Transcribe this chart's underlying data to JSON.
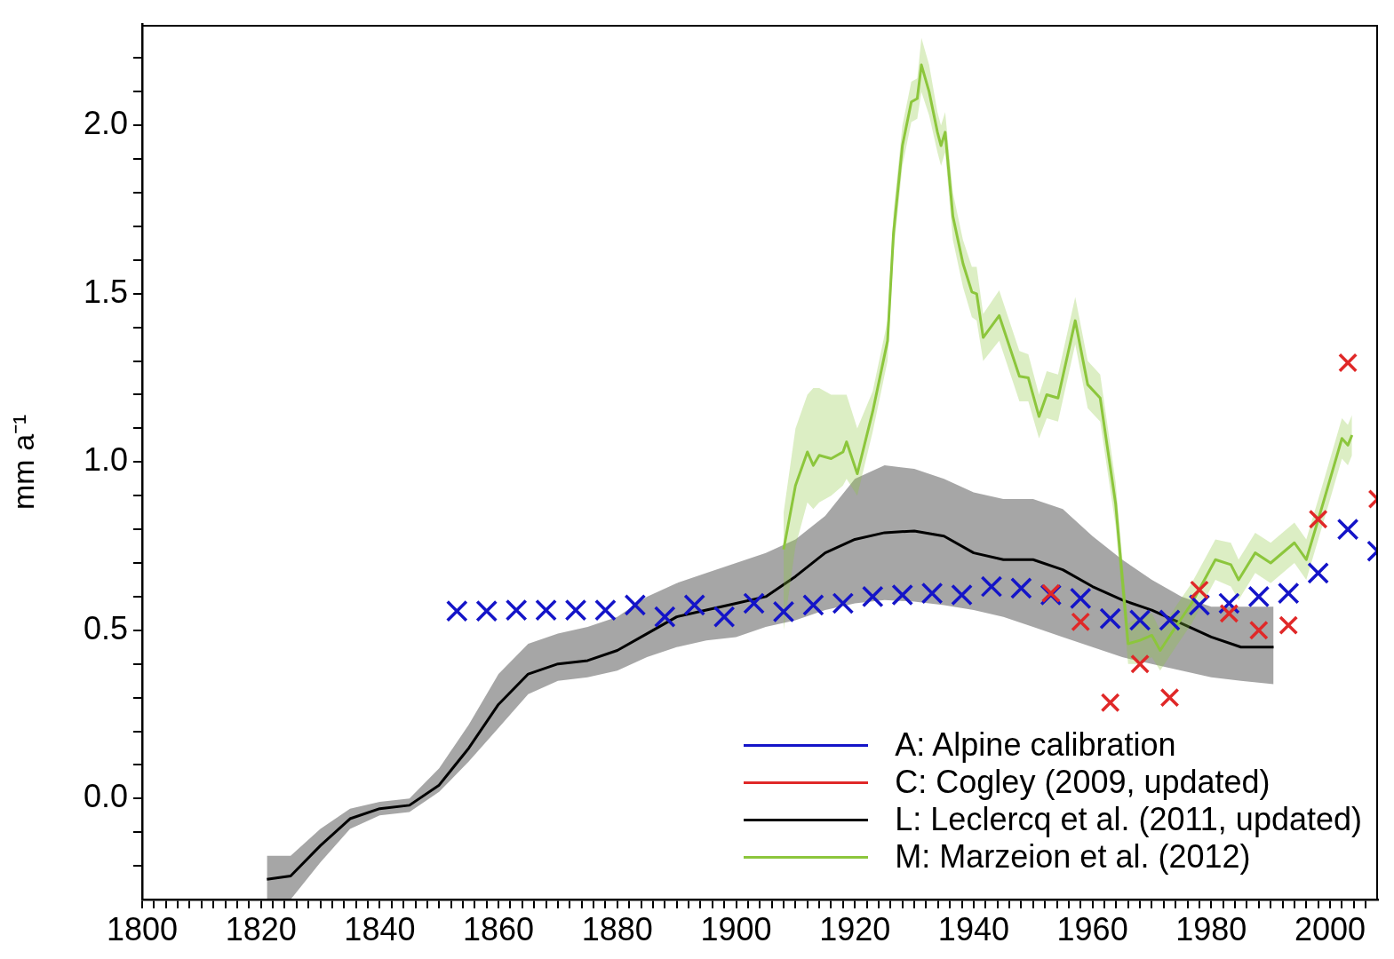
{
  "chart_data": {
    "type": "line",
    "ylabel": "mm a⁻¹",
    "xlim": [
      1800,
      2008
    ],
    "ylim": [
      -0.3,
      2.3
    ],
    "xticks": [
      1800,
      {
        "value": 1802,
        "label": null
      },
      {
        "value": 1804,
        "label": null
      },
      {
        "value": 1806,
        "label": null
      },
      {
        "value": 1808,
        "label": null
      },
      {
        "value": 1810,
        "label": null
      },
      {
        "value": 1812,
        "label": null
      },
      {
        "value": 1814,
        "label": null
      },
      {
        "value": 1816,
        "label": null
      },
      {
        "value": 1818,
        "label": null
      },
      1820,
      {
        "value": 1822,
        "label": null
      },
      {
        "value": 1824,
        "label": null
      },
      {
        "value": 1826,
        "label": null
      },
      {
        "value": 1828,
        "label": null
      },
      {
        "value": 1830,
        "label": null
      },
      {
        "value": 1832,
        "label": null
      },
      {
        "value": 1834,
        "label": null
      },
      {
        "value": 1836,
        "label": null
      },
      {
        "value": 1838,
        "label": null
      },
      1840,
      {
        "value": 1842,
        "label": null
      },
      {
        "value": 1844,
        "label": null
      },
      {
        "value": 1846,
        "label": null
      },
      {
        "value": 1848,
        "label": null
      },
      {
        "value": 1850,
        "label": null
      },
      {
        "value": 1852,
        "label": null
      },
      {
        "value": 1854,
        "label": null
      },
      {
        "value": 1856,
        "label": null
      },
      {
        "value": 1858,
        "label": null
      },
      1860,
      {
        "value": 1862,
        "label": null
      },
      {
        "value": 1864,
        "label": null
      },
      {
        "value": 1866,
        "label": null
      },
      {
        "value": 1868,
        "label": null
      },
      {
        "value": 1870,
        "label": null
      },
      {
        "value": 1872,
        "label": null
      },
      {
        "value": 1874,
        "label": null
      },
      {
        "value": 1876,
        "label": null
      },
      {
        "value": 1878,
        "label": null
      },
      1880,
      {
        "value": 1882,
        "label": null
      },
      {
        "value": 1884,
        "label": null
      },
      {
        "value": 1886,
        "label": null
      },
      {
        "value": 1888,
        "label": null
      },
      {
        "value": 1890,
        "label": null
      },
      {
        "value": 1892,
        "label": null
      },
      {
        "value": 1894,
        "label": null
      },
      {
        "value": 1896,
        "label": null
      },
      {
        "value": 1898,
        "label": null
      },
      1900,
      {
        "value": 1902,
        "label": null
      },
      {
        "value": 1904,
        "label": null
      },
      {
        "value": 1906,
        "label": null
      },
      {
        "value": 1908,
        "label": null
      },
      {
        "value": 1910,
        "label": null
      },
      {
        "value": 1912,
        "label": null
      },
      {
        "value": 1914,
        "label": null
      },
      {
        "value": 1916,
        "label": null
      },
      {
        "value": 1918,
        "label": null
      },
      1920,
      {
        "value": 1922,
        "label": null
      },
      {
        "value": 1924,
        "label": null
      },
      {
        "value": 1926,
        "label": null
      },
      {
        "value": 1928,
        "label": null
      },
      {
        "value": 1930,
        "label": null
      },
      {
        "value": 1932,
        "label": null
      },
      {
        "value": 1934,
        "label": null
      },
      {
        "value": 1936,
        "label": null
      },
      {
        "value": 1938,
        "label": null
      },
      1940,
      {
        "value": 1942,
        "label": null
      },
      {
        "value": 1944,
        "label": null
      },
      {
        "value": 1946,
        "label": null
      },
      {
        "value": 1948,
        "label": null
      },
      {
        "value": 1950,
        "label": null
      },
      {
        "value": 1952,
        "label": null
      },
      {
        "value": 1954,
        "label": null
      },
      {
        "value": 1956,
        "label": null
      },
      {
        "value": 1958,
        "label": null
      },
      1960,
      {
        "value": 1962,
        "label": null
      },
      {
        "value": 1964,
        "label": null
      },
      {
        "value": 1966,
        "label": null
      },
      {
        "value": 1968,
        "label": null
      },
      {
        "value": 1970,
        "label": null
      },
      {
        "value": 1972,
        "label": null
      },
      {
        "value": 1974,
        "label": null
      },
      {
        "value": 1976,
        "label": null
      },
      {
        "value": 1978,
        "label": null
      },
      1980,
      {
        "value": 1982,
        "label": null
      },
      {
        "value": 1984,
        "label": null
      },
      {
        "value": 1986,
        "label": null
      },
      {
        "value": 1988,
        "label": null
      },
      {
        "value": 1990,
        "label": null
      },
      {
        "value": 1992,
        "label": null
      },
      {
        "value": 1994,
        "label": null
      },
      {
        "value": 1996,
        "label": null
      },
      {
        "value": 1998,
        "label": null
      },
      2000,
      {
        "value": 2002,
        "label": null
      },
      {
        "value": 2004,
        "label": null
      },
      {
        "value": 2006,
        "label": null
      }
    ],
    "yticks": [
      {
        "value": -0.2,
        "label": null
      },
      {
        "value": -0.1,
        "label": null
      },
      {
        "value": 0,
        "label": "0.0"
      },
      {
        "value": 0.1,
        "label": null
      },
      {
        "value": 0.2,
        "label": null
      },
      {
        "value": 0.3,
        "label": null
      },
      {
        "value": 0.4,
        "label": null
      },
      {
        "value": 0.5,
        "label": "0.5"
      },
      {
        "value": 0.6,
        "label": null
      },
      {
        "value": 0.7,
        "label": null
      },
      {
        "value": 0.8,
        "label": null
      },
      {
        "value": 0.9,
        "label": null
      },
      {
        "value": 1,
        "label": "1.0"
      },
      {
        "value": 1.1,
        "label": null
      },
      {
        "value": 1.2,
        "label": null
      },
      {
        "value": 1.3,
        "label": null
      },
      {
        "value": 1.4,
        "label": null
      },
      {
        "value": 1.5,
        "label": "1.5"
      },
      {
        "value": 1.6,
        "label": null
      },
      {
        "value": 1.7,
        "label": null
      },
      {
        "value": 1.8,
        "label": null
      },
      {
        "value": 1.9,
        "label": null
      },
      {
        "value": 2,
        "label": "2.0"
      },
      {
        "value": 2.1,
        "label": null
      },
      {
        "value": 2.2,
        "label": null
      }
    ],
    "grid": false,
    "legend": "bottom right",
    "series": [
      {
        "name": "A: Alpine calibration",
        "type": "scatter",
        "marker": "cross",
        "color": "#1414c8",
        "x": [
          1853,
          1858,
          1863,
          1868,
          1873,
          1878,
          1883,
          1888,
          1893,
          1898,
          1903,
          1908,
          1913,
          1918,
          1923,
          1928,
          1933,
          1938,
          1943,
          1948,
          1953,
          1958,
          1963,
          1968,
          1973,
          1978,
          1983,
          1988,
          1993,
          1998,
          2003,
          2008
        ],
        "values": [
          0.557,
          0.557,
          0.56,
          0.56,
          0.56,
          0.56,
          0.575,
          0.54,
          0.575,
          0.54,
          0.58,
          0.555,
          0.575,
          0.58,
          0.6,
          0.605,
          0.61,
          0.605,
          0.63,
          0.625,
          0.605,
          0.595,
          0.535,
          0.53,
          0.53,
          0.575,
          0.58,
          0.6,
          0.61,
          0.67,
          0.8,
          0.735
        ]
      },
      {
        "name": "C: Cogley (2009, updated)",
        "type": "scatter",
        "marker": "cross",
        "color": "#e02828",
        "x": [
          1953,
          1958,
          1963,
          1968,
          1973,
          1978,
          1983,
          1988,
          1993,
          1998,
          2003,
          2008
        ],
        "values": [
          0.61,
          0.525,
          0.285,
          0.4,
          0.3,
          0.62,
          0.55,
          0.5,
          0.515,
          0.83,
          1.295,
          0.89
        ]
      },
      {
        "name": "L: Leclercq et al. (2011, updated)",
        "type": "line",
        "color": "#000000",
        "x": [
          1821,
          1825,
          1830,
          1835,
          1840,
          1845,
          1850,
          1855,
          1860,
          1865,
          1870,
          1875,
          1880,
          1885,
          1890,
          1895,
          1900,
          1905,
          1910,
          1915,
          1920,
          1925,
          1930,
          1935,
          1940,
          1945,
          1950,
          1955,
          1960,
          1965,
          1970,
          1975,
          1980,
          1985,
          1990.5
        ],
        "values": [
          -0.24,
          -0.23,
          -0.14,
          -0.06,
          -0.03,
          -0.02,
          0.04,
          0.15,
          0.28,
          0.37,
          0.4,
          0.41,
          0.44,
          0.49,
          0.54,
          0.56,
          0.58,
          0.6,
          0.66,
          0.73,
          0.77,
          0.79,
          0.795,
          0.78,
          0.73,
          0.71,
          0.71,
          0.68,
          0.63,
          0.59,
          0.56,
          0.52,
          0.48,
          0.45,
          0.45
        ],
        "lower": [
          -0.3,
          -0.3,
          -0.19,
          -0.09,
          -0.05,
          -0.04,
          0.02,
          0.11,
          0.21,
          0.31,
          0.35,
          0.36,
          0.38,
          0.42,
          0.45,
          0.47,
          0.48,
          0.51,
          0.53,
          0.56,
          0.58,
          0.59,
          0.585,
          0.575,
          0.56,
          0.54,
          0.51,
          0.48,
          0.45,
          0.42,
          0.4,
          0.38,
          0.36,
          0.35,
          0.34
        ],
        "upper": [
          -0.17,
          -0.17,
          -0.09,
          -0.03,
          -0.01,
          0,
          0.09,
          0.22,
          0.37,
          0.46,
          0.49,
          0.51,
          0.54,
          0.6,
          0.64,
          0.67,
          0.7,
          0.73,
          0.77,
          0.84,
          0.95,
          0.99,
          0.98,
          0.95,
          0.91,
          0.89,
          0.89,
          0.86,
          0.78,
          0.71,
          0.65,
          0.6,
          0.57,
          0.57,
          0.57
        ]
      },
      {
        "name": "M: Marzeion et al. (2012)",
        "type": "line",
        "color": "#8cc63c",
        "x": [
          1908,
          1910,
          1912,
          1913,
          1914,
          1916,
          1918,
          1918.6,
          1920.4,
          1923,
          1925.5,
          1926.5,
          1928,
          1929.5,
          1930.5,
          1931.2,
          1932.5,
          1933.9,
          1934.5,
          1935.2,
          1936.5,
          1938.2,
          1939.7,
          1940.5,
          1941.6,
          1944.3,
          1947.7,
          1949.2,
          1951,
          1952.3,
          1954.2,
          1957.1,
          1959.2,
          1961.3,
          1963.9,
          1966,
          1968,
          1970,
          1971.4,
          1974,
          1976.7,
          1980.7,
          1983.3,
          1984.6,
          1987.4,
          1990,
          1994,
          1996,
          1998.7,
          2002,
          2003,
          2003.7
        ],
        "values": [
          0.74,
          0.93,
          1.03,
          0.99,
          1.02,
          1.01,
          1.03,
          1.06,
          0.965,
          1.15,
          1.36,
          1.68,
          1.94,
          2.07,
          2.08,
          2.18,
          2.1,
          1.98,
          1.94,
          1.98,
          1.73,
          1.59,
          1.505,
          1.5,
          1.37,
          1.435,
          1.255,
          1.25,
          1.135,
          1.2,
          1.19,
          1.42,
          1.23,
          1.19,
          0.876,
          0.46,
          0.47,
          0.485,
          0.44,
          0.51,
          0.58,
          0.71,
          0.695,
          0.65,
          0.73,
          0.7,
          0.76,
          0.71,
          0.87,
          1.07,
          1.05,
          1.08
        ],
        "lower": [
          0.5,
          0.75,
          0.88,
          0.86,
          0.88,
          0.9,
          0.93,
          0.95,
          0.9,
          1.09,
          1.3,
          1.62,
          1.88,
          2.01,
          2.02,
          2.1,
          2.03,
          1.92,
          1.88,
          1.92,
          1.66,
          1.52,
          1.43,
          1.42,
          1.3,
          1.36,
          1.18,
          1.18,
          1.07,
          1.13,
          1.12,
          1.35,
          1.16,
          1.12,
          0.81,
          0.4,
          0.4,
          0.42,
          0.38,
          0.45,
          0.52,
          0.65,
          0.63,
          0.59,
          0.67,
          0.64,
          0.7,
          0.65,
          0.81,
          1.01,
          0.99,
          1.02
        ],
        "upper": [
          0.85,
          1.1,
          1.2,
          1.22,
          1.22,
          1.2,
          1.2,
          1.2,
          1.1,
          1.21,
          1.42,
          1.74,
          2,
          2.13,
          2.14,
          2.26,
          2.18,
          2.04,
          2,
          2.04,
          1.8,
          1.66,
          1.58,
          1.58,
          1.44,
          1.51,
          1.33,
          1.32,
          1.2,
          1.27,
          1.26,
          1.49,
          1.3,
          1.26,
          0.94,
          0.52,
          0.54,
          0.55,
          0.5,
          0.57,
          0.64,
          0.77,
          0.76,
          0.71,
          0.79,
          0.76,
          0.82,
          0.77,
          0.93,
          1.13,
          1.11,
          1.14
        ]
      }
    ]
  }
}
